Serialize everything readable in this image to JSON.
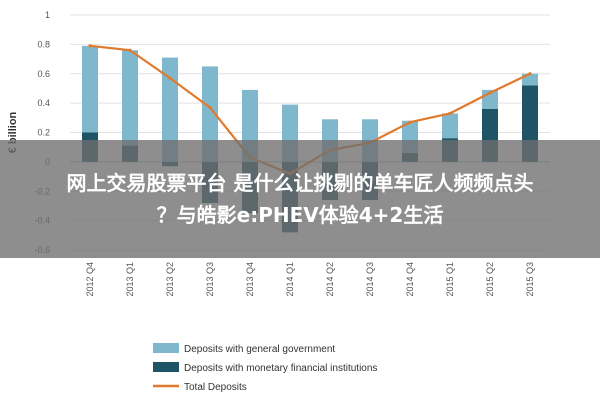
{
  "chart_data": {
    "type": "bar",
    "ylabel": "€ billion",
    "ylim": [
      -0.6,
      1.0
    ],
    "yticks": [
      1,
      0.8,
      0.6,
      0.4,
      0.2,
      0,
      -0.2,
      -0.4,
      -0.6
    ],
    "categories": [
      "2012 Q4",
      "2013 Q1",
      "2013 Q2",
      "2013 Q3",
      "2013 Q4",
      "2014 Q1",
      "2014 Q2",
      "2014 Q3",
      "2014 Q4",
      "2015 Q1",
      "2015 Q2",
      "2015 Q3"
    ],
    "series": [
      {
        "name": "Deposits with general government",
        "type": "bar",
        "color": "#7fb8cc",
        "values": [
          0.79,
          0.76,
          0.71,
          0.65,
          0.49,
          0.39,
          0.29,
          0.29,
          0.28,
          0.33,
          0.49,
          0.6
        ]
      },
      {
        "name": "Deposits with monetary financial institutions",
        "type": "bar",
        "color": "#1f5466",
        "values": [
          0.2,
          0.11,
          -0.03,
          -0.28,
          -0.35,
          -0.48,
          -0.26,
          -0.26,
          0.06,
          0.16,
          0.36,
          0.52
        ]
      },
      {
        "name": "Total Deposits",
        "type": "line",
        "color": "#e07a2e",
        "values": [
          0.79,
          0.76,
          0.57,
          0.37,
          0.03,
          -0.08,
          0.08,
          0.13,
          0.27,
          0.33,
          0.47,
          0.6
        ]
      }
    ],
    "legend_position": "bottom-center"
  },
  "overlay": {
    "line1": "网上交易股票平台 是什么让挑剔的单车匠人频频点头",
    "line2": "？与皓影e:PHEV体验4+2生活"
  }
}
